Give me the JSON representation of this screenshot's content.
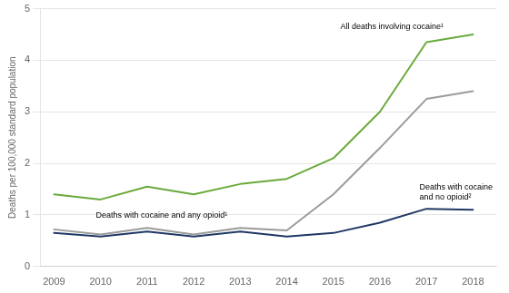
{
  "chart_data": {
    "type": "line",
    "x": [
      2009,
      2010,
      2011,
      2012,
      2013,
      2014,
      2015,
      2016,
      2017,
      2018
    ],
    "series": [
      {
        "color": "#6aaa3a",
        "values": [
          1.4,
          1.3,
          1.55,
          1.4,
          1.6,
          1.7,
          2.1,
          3.0,
          4.35,
          4.5
        ]
      },
      {
        "color": "#9b9b9b",
        "values": [
          0.72,
          0.62,
          0.75,
          0.62,
          0.75,
          0.7,
          1.4,
          2.3,
          3.25,
          3.4
        ]
      },
      {
        "color": "#1f3864",
        "values": [
          0.65,
          0.58,
          0.68,
          0.58,
          0.68,
          0.58,
          0.65,
          0.85,
          1.12,
          1.1
        ]
      }
    ],
    "ylabel": "Deaths per 100,000 standard population",
    "xlim": [
      2008.7,
      2018.5
    ],
    "xticks": [
      2009,
      2010,
      2011,
      2012,
      2013,
      2014,
      2015,
      2016,
      2017,
      2018
    ],
    "ylim": [
      0,
      5
    ],
    "yticks": [
      0,
      1,
      2,
      3,
      4,
      5
    ],
    "grid": "y",
    "annotations": [
      {
        "text": "All deaths involving cocaine¹",
        "x": 2015.15,
        "y": 4.72
      },
      {
        "text": "Deaths with cocaine and any opioid¹",
        "x": 2009.9,
        "y": 0.98
      },
      {
        "text": "Deaths with cocaine\nand no opioid²",
        "x": 2016.85,
        "y": 1.62
      }
    ]
  }
}
